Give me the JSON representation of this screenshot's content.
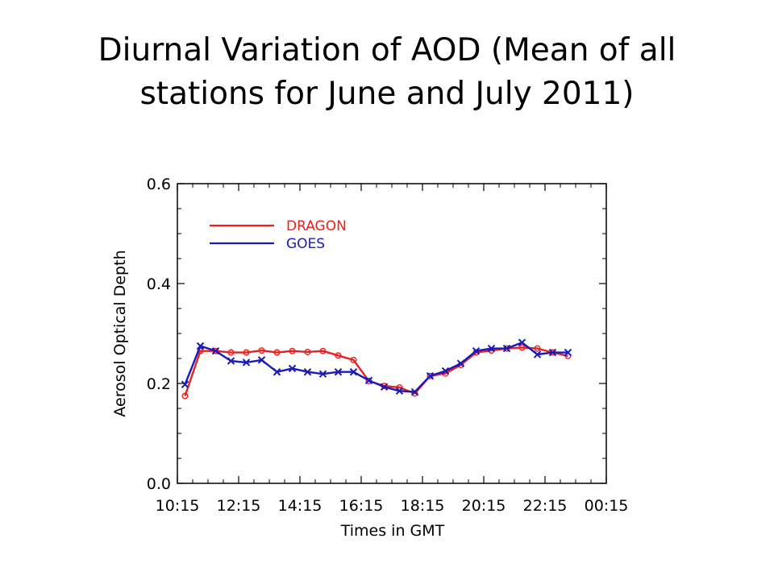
{
  "slide": {
    "title_line1": "Diurnal Variation of AOD (Mean of all",
    "title_line2": "stations for June and July 2011)"
  },
  "chart_data": {
    "type": "line",
    "title": "",
    "xlabel": "Times in GMT",
    "ylabel": "Aerosol Optical Depth",
    "x_tick_labels": [
      "10:15",
      "12:15",
      "14:15",
      "16:15",
      "18:15",
      "20:15",
      "22:15",
      "00:15"
    ],
    "y_tick_labels": [
      "0.0",
      "0.2",
      "0.4",
      "0.6"
    ],
    "xlim": [
      10.25,
      24.25
    ],
    "ylim": [
      0.0,
      0.6
    ],
    "grid": false,
    "legend_position": "top-left",
    "x": [
      10.5,
      11.0,
      11.5,
      12.0,
      12.5,
      13.0,
      13.5,
      14.0,
      14.5,
      15.0,
      15.5,
      16.0,
      16.5,
      17.0,
      17.5,
      18.0,
      18.5,
      19.0,
      19.5,
      20.0,
      20.5,
      21.0,
      21.5,
      22.0,
      22.5,
      23.0
    ],
    "series": [
      {
        "name": "DRAGON",
        "color": "#e8201e",
        "marker": "circle",
        "values": [
          0.175,
          0.265,
          0.265,
          0.262,
          0.262,
          0.266,
          0.262,
          0.265,
          0.263,
          0.265,
          0.256,
          0.247,
          0.205,
          0.195,
          0.192,
          0.18,
          0.215,
          0.22,
          0.237,
          0.262,
          0.266,
          0.27,
          0.272,
          0.27,
          0.262,
          0.255
        ]
      },
      {
        "name": "GOES",
        "color": "#1a1ab8",
        "marker": "x",
        "values": [
          0.198,
          0.275,
          0.265,
          0.245,
          0.242,
          0.247,
          0.223,
          0.23,
          0.223,
          0.219,
          0.223,
          0.223,
          0.206,
          0.193,
          0.185,
          0.183,
          0.215,
          0.225,
          0.24,
          0.265,
          0.27,
          0.27,
          0.282,
          0.258,
          0.262,
          0.262
        ]
      }
    ]
  }
}
